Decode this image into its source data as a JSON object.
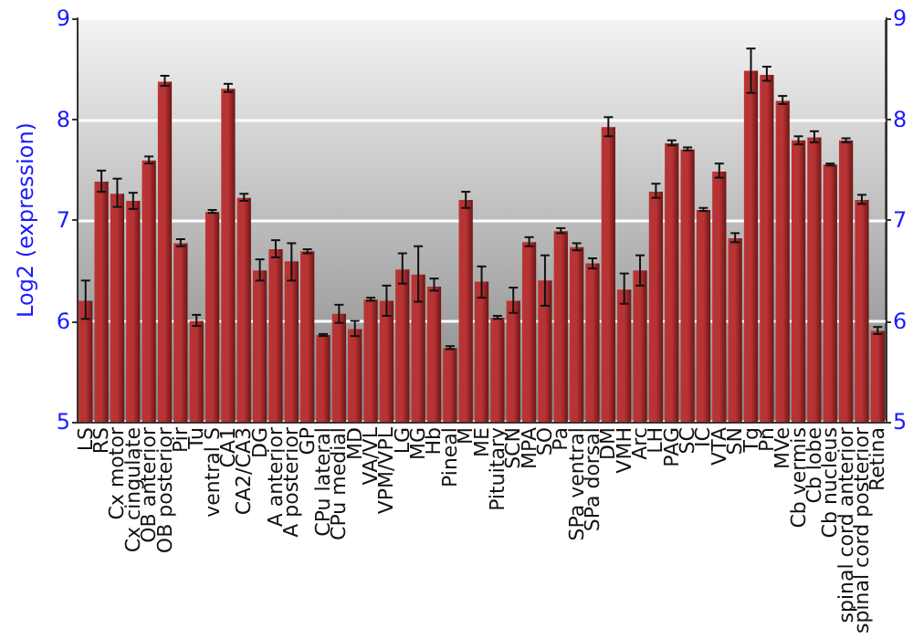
{
  "chart_data": {
    "type": "bar",
    "ylabel": "Log2 (expression)",
    "categories": [
      "LS",
      "RS",
      "Cx motor",
      "Cx cingulate",
      "OB anterior",
      "OB posterior",
      "Pir",
      "Tu",
      "ventral S",
      "CA1",
      "CA2/CA3",
      "DG",
      "A anterior",
      "A posterior",
      "GP",
      "CPu lateral",
      "CPu medial",
      "MD",
      "VA/VL",
      "VPM/VPL",
      "LG",
      "MG",
      "Hb",
      "Pineal",
      "M",
      "ME",
      "Pituitary",
      "SCN",
      "MPA",
      "SO",
      "Pa",
      "SPa ventral",
      "SPa dorsal",
      "DM",
      "VMH",
      "Arc",
      "LH",
      "PAG",
      "SC",
      "IC",
      "VTA",
      "SN",
      "Tg",
      "Pn",
      "MVe",
      "Cb vermis",
      "Cb lobe",
      "Cb nucleus",
      "spinal cord anterior",
      "spinal cord posterior",
      "Retina"
    ],
    "series": [
      {
        "color": "#b83434",
        "values": [
          6.2,
          7.38,
          7.26,
          7.19,
          7.59,
          8.37,
          6.77,
          6.0,
          7.08,
          8.3,
          7.22,
          6.5,
          6.71,
          6.59,
          6.69,
          5.86,
          6.07,
          5.92,
          6.21,
          6.2,
          6.51,
          6.46,
          6.34,
          5.73,
          7.2,
          6.39,
          6.03,
          6.2,
          6.78,
          6.4,
          6.89,
          6.73,
          6.57,
          7.92,
          6.31,
          6.5,
          7.28,
          7.76,
          7.7,
          7.1,
          7.48,
          6.82,
          8.48,
          8.44,
          8.18,
          7.79,
          7.82,
          7.55,
          7.79,
          7.2,
          5.9
        ],
        "errors": [
          [
            6.02,
            6.4
          ],
          [
            7.28,
            7.49
          ],
          [
            7.13,
            7.41
          ],
          [
            7.11,
            7.27
          ],
          [
            7.56,
            7.63
          ],
          [
            8.33,
            8.43
          ],
          [
            6.74,
            6.81
          ],
          [
            5.95,
            6.06
          ],
          [
            7.07,
            7.1
          ],
          [
            8.27,
            8.35
          ],
          [
            7.19,
            7.26
          ],
          [
            6.4,
            6.61
          ],
          [
            6.63,
            6.8
          ],
          [
            6.4,
            6.77
          ],
          [
            6.67,
            6.71
          ],
          [
            5.85,
            5.87
          ],
          [
            5.98,
            6.16
          ],
          [
            5.85,
            6.0
          ],
          [
            6.2,
            6.23
          ],
          [
            6.05,
            6.35
          ],
          [
            6.37,
            6.67
          ],
          [
            6.19,
            6.74
          ],
          [
            6.3,
            6.42
          ],
          [
            5.72,
            5.75
          ],
          [
            7.12,
            7.28
          ],
          [
            6.23,
            6.54
          ],
          [
            6.02,
            6.05
          ],
          [
            6.08,
            6.33
          ],
          [
            6.74,
            6.83
          ],
          [
            6.15,
            6.65
          ],
          [
            6.87,
            6.92
          ],
          [
            6.7,
            6.77
          ],
          [
            6.52,
            6.62
          ],
          [
            7.83,
            8.02
          ],
          [
            6.17,
            6.47
          ],
          [
            6.35,
            6.65
          ],
          [
            7.22,
            7.36
          ],
          [
            7.74,
            7.79
          ],
          [
            7.69,
            7.72
          ],
          [
            7.09,
            7.12
          ],
          [
            7.42,
            7.56
          ],
          [
            6.78,
            6.87
          ],
          [
            8.26,
            8.7
          ],
          [
            8.38,
            8.52
          ],
          [
            8.15,
            8.23
          ],
          [
            7.75,
            7.83
          ],
          [
            7.77,
            7.88
          ],
          [
            7.54,
            7.56
          ],
          [
            7.77,
            7.81
          ],
          [
            7.16,
            7.25
          ],
          [
            5.87,
            5.94
          ]
        ]
      }
    ],
    "ylim": [
      5,
      9
    ],
    "yticks": [
      5,
      6,
      7,
      8,
      9
    ],
    "y2lim": [
      5,
      9
    ],
    "y2ticks": [
      5,
      6,
      7,
      8,
      9
    ],
    "grid": "y"
  }
}
